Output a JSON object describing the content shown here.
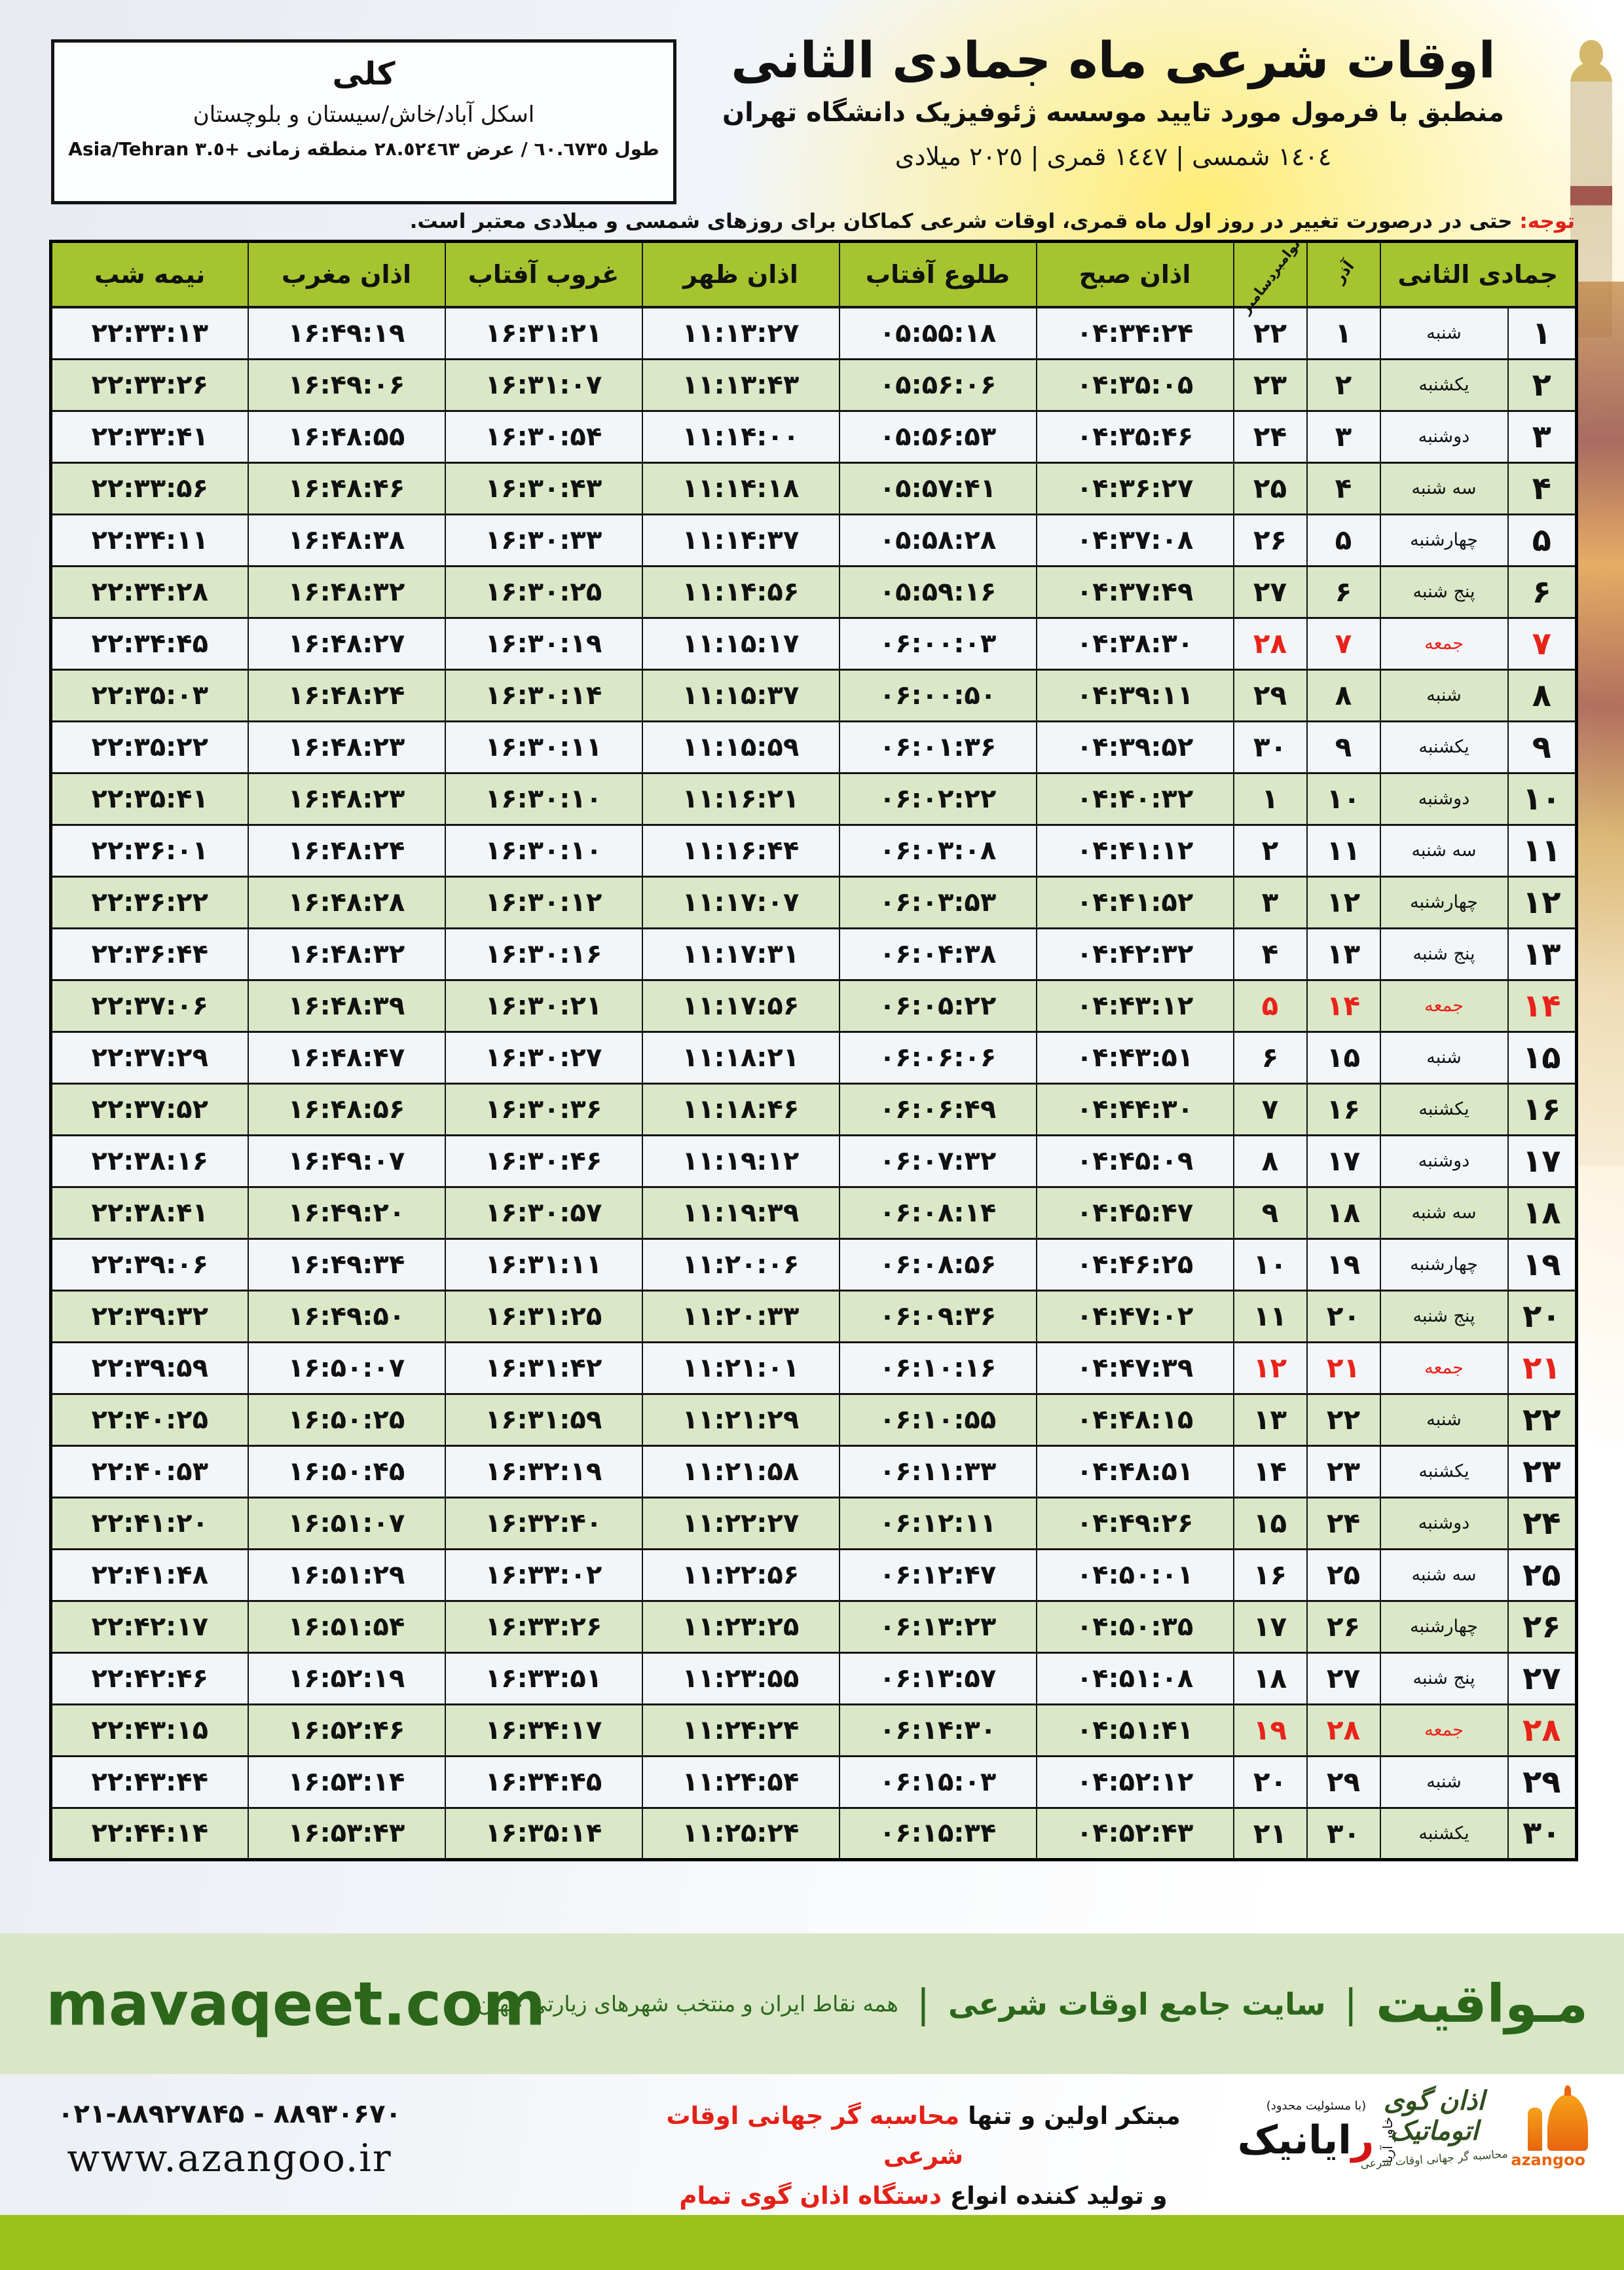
{
  "header": {
    "title": "اوقات شرعی ماه جمادی الثانی",
    "subtitle": "منطبق با فرمول مورد تایید موسسه ژئوفیزیک دانشگاه تهران",
    "dates": "١٤٠٤ شمسی | ١٤٤٧ قمری | ٢٠٢٥ میلادی"
  },
  "location_box": {
    "city": "کلی",
    "region": "اسکل آباد/خاش/سیستان و بلوچستان",
    "coords": "طول ٦٠.٦٧٣٥ / عرض ٢٨.٥٢٤٦٣ منطقه زمانی ‎+٣.٥ Asia/Tehran"
  },
  "notice": {
    "label": "توجه:",
    "text": "حتی در درصورت تغییر در روز اول ماه قمری، اوقات شرعی کماکان برای روزهای شمسی و میلادی معتبر است."
  },
  "table": {
    "columns": {
      "month_day": "جمادی الثانی",
      "azar": "آذر",
      "greg_top": "نوامبر",
      "greg_bottom": "دسامبر",
      "fajr": "اذان صبح",
      "sunrise": "طلوع آفتاب",
      "dhuhr": "اذان ظهر",
      "sunset": "غروب آفتاب",
      "maghrib": "اذان مغرب",
      "midnight": "نیمه شب"
    },
    "rows": [
      {
        "day": 1,
        "weekday": "شنبه",
        "azar": 1,
        "greg": 22,
        "fajr": "04:34:24",
        "sunrise": "05:55:18",
        "dhuhr": "11:13:27",
        "sunset": "16:31:21",
        "maghrib": "16:49:19",
        "midnight": "22:33:13",
        "friday": false
      },
      {
        "day": 2,
        "weekday": "یکشنبه",
        "azar": 2,
        "greg": 23,
        "fajr": "04:35:05",
        "sunrise": "05:56:06",
        "dhuhr": "11:13:43",
        "sunset": "16:31:07",
        "maghrib": "16:49:06",
        "midnight": "22:33:26",
        "friday": false
      },
      {
        "day": 3,
        "weekday": "دوشنبه",
        "azar": 3,
        "greg": 24,
        "fajr": "04:35:46",
        "sunrise": "05:56:53",
        "dhuhr": "11:14:00",
        "sunset": "16:30:54",
        "maghrib": "16:48:55",
        "midnight": "22:33:41",
        "friday": false
      },
      {
        "day": 4,
        "weekday": "سه شنبه",
        "azar": 4,
        "greg": 25,
        "fajr": "04:36:27",
        "sunrise": "05:57:41",
        "dhuhr": "11:14:18",
        "sunset": "16:30:43",
        "maghrib": "16:48:46",
        "midnight": "22:33:56",
        "friday": false
      },
      {
        "day": 5,
        "weekday": "چهارشنبه",
        "azar": 5,
        "greg": 26,
        "fajr": "04:37:08",
        "sunrise": "05:58:28",
        "dhuhr": "11:14:37",
        "sunset": "16:30:33",
        "maghrib": "16:48:38",
        "midnight": "22:34:11",
        "friday": false
      },
      {
        "day": 6,
        "weekday": "پنج شنبه",
        "azar": 6,
        "greg": 27,
        "fajr": "04:37:49",
        "sunrise": "05:59:16",
        "dhuhr": "11:14:56",
        "sunset": "16:30:25",
        "maghrib": "16:48:32",
        "midnight": "22:34:28",
        "friday": false
      },
      {
        "day": 7,
        "weekday": "جمعه",
        "azar": 7,
        "greg": 28,
        "fajr": "04:38:30",
        "sunrise": "06:00:03",
        "dhuhr": "11:15:17",
        "sunset": "16:30:19",
        "maghrib": "16:48:27",
        "midnight": "22:34:45",
        "friday": true
      },
      {
        "day": 8,
        "weekday": "شنبه",
        "azar": 8,
        "greg": 29,
        "fajr": "04:39:11",
        "sunrise": "06:00:50",
        "dhuhr": "11:15:37",
        "sunset": "16:30:14",
        "maghrib": "16:48:24",
        "midnight": "22:35:03",
        "friday": false
      },
      {
        "day": 9,
        "weekday": "یکشنبه",
        "azar": 9,
        "greg": 30,
        "fajr": "04:39:52",
        "sunrise": "06:01:36",
        "dhuhr": "11:15:59",
        "sunset": "16:30:11",
        "maghrib": "16:48:23",
        "midnight": "22:35:22",
        "friday": false
      },
      {
        "day": 10,
        "weekday": "دوشنبه",
        "azar": 10,
        "greg": 1,
        "fajr": "04:40:32",
        "sunrise": "06:02:22",
        "dhuhr": "11:16:21",
        "sunset": "16:30:10",
        "maghrib": "16:48:23",
        "midnight": "22:35:41",
        "friday": false
      },
      {
        "day": 11,
        "weekday": "سه شنبه",
        "azar": 11,
        "greg": 2,
        "fajr": "04:41:12",
        "sunrise": "06:03:08",
        "dhuhr": "11:16:44",
        "sunset": "16:30:10",
        "maghrib": "16:48:24",
        "midnight": "22:36:01",
        "friday": false
      },
      {
        "day": 12,
        "weekday": "چهارشنبه",
        "azar": 12,
        "greg": 3,
        "fajr": "04:41:52",
        "sunrise": "06:03:53",
        "dhuhr": "11:17:07",
        "sunset": "16:30:12",
        "maghrib": "16:48:28",
        "midnight": "22:36:22",
        "friday": false
      },
      {
        "day": 13,
        "weekday": "پنج شنبه",
        "azar": 13,
        "greg": 4,
        "fajr": "04:42:32",
        "sunrise": "06:04:38",
        "dhuhr": "11:17:31",
        "sunset": "16:30:16",
        "maghrib": "16:48:32",
        "midnight": "22:36:44",
        "friday": false
      },
      {
        "day": 14,
        "weekday": "جمعه",
        "azar": 14,
        "greg": 5,
        "fajr": "04:43:12",
        "sunrise": "06:05:22",
        "dhuhr": "11:17:56",
        "sunset": "16:30:21",
        "maghrib": "16:48:39",
        "midnight": "22:37:06",
        "friday": true
      },
      {
        "day": 15,
        "weekday": "شنبه",
        "azar": 15,
        "greg": 6,
        "fajr": "04:43:51",
        "sunrise": "06:06:06",
        "dhuhr": "11:18:21",
        "sunset": "16:30:27",
        "maghrib": "16:48:47",
        "midnight": "22:37:29",
        "friday": false
      },
      {
        "day": 16,
        "weekday": "یکشنبه",
        "azar": 16,
        "greg": 7,
        "fajr": "04:44:30",
        "sunrise": "06:06:49",
        "dhuhr": "11:18:46",
        "sunset": "16:30:36",
        "maghrib": "16:48:56",
        "midnight": "22:37:52",
        "friday": false
      },
      {
        "day": 17,
        "weekday": "دوشنبه",
        "azar": 17,
        "greg": 8,
        "fajr": "04:45:09",
        "sunrise": "06:07:32",
        "dhuhr": "11:19:12",
        "sunset": "16:30:46",
        "maghrib": "16:49:07",
        "midnight": "22:38:16",
        "friday": false
      },
      {
        "day": 18,
        "weekday": "سه شنبه",
        "azar": 18,
        "greg": 9,
        "fajr": "04:45:47",
        "sunrise": "06:08:14",
        "dhuhr": "11:19:39",
        "sunset": "16:30:57",
        "maghrib": "16:49:20",
        "midnight": "22:38:41",
        "friday": false
      },
      {
        "day": 19,
        "weekday": "چهارشنبه",
        "azar": 19,
        "greg": 10,
        "fajr": "04:46:25",
        "sunrise": "06:08:56",
        "dhuhr": "11:20:06",
        "sunset": "16:31:11",
        "maghrib": "16:49:34",
        "midnight": "22:39:06",
        "friday": false
      },
      {
        "day": 20,
        "weekday": "پنج شنبه",
        "azar": 20,
        "greg": 11,
        "fajr": "04:47:02",
        "sunrise": "06:09:36",
        "dhuhr": "11:20:33",
        "sunset": "16:31:25",
        "maghrib": "16:49:50",
        "midnight": "22:39:32",
        "friday": false
      },
      {
        "day": 21,
        "weekday": "جمعه",
        "azar": 21,
        "greg": 12,
        "fajr": "04:47:39",
        "sunrise": "06:10:16",
        "dhuhr": "11:21:01",
        "sunset": "16:31:42",
        "maghrib": "16:50:07",
        "midnight": "22:39:59",
        "friday": true
      },
      {
        "day": 22,
        "weekday": "شنبه",
        "azar": 22,
        "greg": 13,
        "fajr": "04:48:15",
        "sunrise": "06:10:55",
        "dhuhr": "11:21:29",
        "sunset": "16:31:59",
        "maghrib": "16:50:25",
        "midnight": "22:40:25",
        "friday": false
      },
      {
        "day": 23,
        "weekday": "یکشنبه",
        "azar": 23,
        "greg": 14,
        "fajr": "04:48:51",
        "sunrise": "06:11:33",
        "dhuhr": "11:21:58",
        "sunset": "16:32:19",
        "maghrib": "16:50:45",
        "midnight": "22:40:53",
        "friday": false
      },
      {
        "day": 24,
        "weekday": "دوشنبه",
        "azar": 24,
        "greg": 15,
        "fajr": "04:49:26",
        "sunrise": "06:12:11",
        "dhuhr": "11:22:27",
        "sunset": "16:32:40",
        "maghrib": "16:51:07",
        "midnight": "22:41:20",
        "friday": false
      },
      {
        "day": 25,
        "weekday": "سه شنبه",
        "azar": 25,
        "greg": 16,
        "fajr": "04:50:01",
        "sunrise": "06:12:47",
        "dhuhr": "11:22:56",
        "sunset": "16:33:02",
        "maghrib": "16:51:29",
        "midnight": "22:41:48",
        "friday": false
      },
      {
        "day": 26,
        "weekday": "چهارشنبه",
        "azar": 26,
        "greg": 17,
        "fajr": "04:50:35",
        "sunrise": "06:13:23",
        "dhuhr": "11:23:25",
        "sunset": "16:33:26",
        "maghrib": "16:51:54",
        "midnight": "22:42:17",
        "friday": false
      },
      {
        "day": 27,
        "weekday": "پنج شنبه",
        "azar": 27,
        "greg": 18,
        "fajr": "04:51:08",
        "sunrise": "06:13:57",
        "dhuhr": "11:23:55",
        "sunset": "16:33:51",
        "maghrib": "16:52:19",
        "midnight": "22:42:46",
        "friday": false
      },
      {
        "day": 28,
        "weekday": "جمعه",
        "azar": 28,
        "greg": 19,
        "fajr": "04:51:41",
        "sunrise": "06:14:30",
        "dhuhr": "11:24:24",
        "sunset": "16:34:17",
        "maghrib": "16:52:46",
        "midnight": "22:43:15",
        "friday": true
      },
      {
        "day": 29,
        "weekday": "شنبه",
        "azar": 29,
        "greg": 20,
        "fajr": "04:52:12",
        "sunrise": "06:15:03",
        "dhuhr": "11:24:54",
        "sunset": "16:34:45",
        "maghrib": "16:53:14",
        "midnight": "22:43:44",
        "friday": false
      },
      {
        "day": 30,
        "weekday": "یکشنبه",
        "azar": 30,
        "greg": 21,
        "fajr": "04:52:43",
        "sunrise": "06:15:34",
        "dhuhr": "11:25:24",
        "sunset": "16:35:14",
        "maghrib": "16:53:43",
        "midnight": "22:44:14",
        "friday": false
      }
    ]
  },
  "footer_band": {
    "brand_fa": "مـواقیت",
    "site_desc": "سایت جامع اوقات شرعی",
    "site_desc2": "همه نقاط ایران و منتخب شهرهای زیارتی جهان",
    "brand_en": "mavaqeet.com"
  },
  "bottom": {
    "phones": "۰۲۱-۸۸۹۲۷۸۴۵ - ۸۸۹۳۰۶۷۰",
    "website": "www.azangoo.ir",
    "line1_black": "مبتکر اولین و تنها",
    "line1_red": "محاسبه گر جهانی اوقات شرعی",
    "line2_black": "و تولید کننده انواع",
    "line2_red": "دستگاه اذان گوی تمام خودکار ماهواره ای",
    "rayanik_note": "(با مسئولیت محدود)",
    "rayanik_name": "رایانیک",
    "rayanik_side": "خاور آریا",
    "azangoo_title": "اذان گوی اتوماتیک",
    "azangoo_sub": "محاسبه گر جهانی اوقات شرعی",
    "azangoo_en": "azangoo"
  },
  "colors": {
    "header_green": "#a6c430",
    "row_green": "#dbe8c8",
    "row_white": "#f3f6f9",
    "friday_red": "#e8231a",
    "footer_band_green": "#d9e7c6",
    "brand_dark_green": "#2b661b",
    "bottom_bar_green": "#9cc11d",
    "azangoo_orange": "#e8650d"
  }
}
